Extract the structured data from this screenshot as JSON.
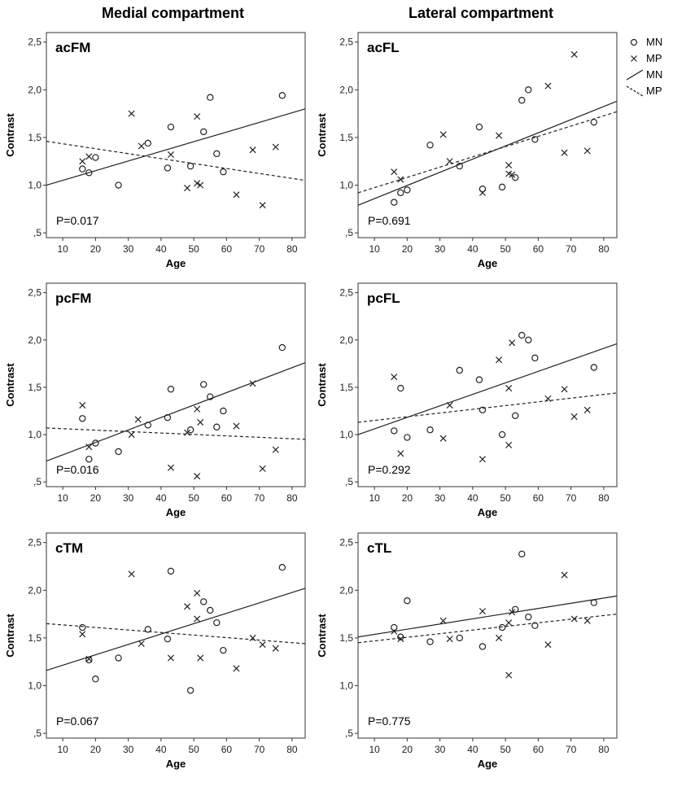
{
  "column_titles": {
    "medial": "Medial compartment",
    "lateral": "Lateral compartment"
  },
  "legend": {
    "mn_marker": "MN",
    "mp_marker": "MP",
    "mn_line": "MN",
    "mp_line": "MP"
  },
  "chart_data": [
    {
      "type": "scatter",
      "name": "acFM",
      "title": "acFM",
      "pvalue": "P=0.017",
      "xlabel": "Age",
      "ylabel": "Contrast",
      "xlim": [
        5,
        84
      ],
      "ylim": [
        0.45,
        2.6
      ],
      "xticks": [
        10,
        20,
        30,
        40,
        50,
        60,
        70,
        80
      ],
      "xtick_labels": [
        "10",
        "20",
        "30",
        "40",
        "50",
        "60",
        "70",
        "80"
      ],
      "yticks": [
        0.5,
        1.0,
        1.5,
        2.0,
        2.5
      ],
      "ytick_labels": [
        ",5",
        "1,0",
        "1,5",
        "2,0",
        "2,5"
      ],
      "series": [
        {
          "name": "MN",
          "marker": "circle",
          "x": [
            16,
            18,
            20,
            27,
            36,
            42,
            43,
            49,
            53,
            55,
            57,
            59,
            77
          ],
          "y": [
            1.17,
            1.13,
            1.29,
            1.0,
            1.44,
            1.18,
            1.61,
            1.2,
            1.56,
            1.92,
            1.33,
            1.14,
            1.94
          ]
        },
        {
          "name": "MP",
          "marker": "cross",
          "x": [
            16,
            18,
            31,
            34,
            43,
            48,
            51,
            51,
            52,
            63,
            68,
            71,
            75
          ],
          "y": [
            1.25,
            1.3,
            1.75,
            1.41,
            1.32,
            0.97,
            1.72,
            1.02,
            1.0,
            0.9,
            1.37,
            0.79,
            1.4
          ]
        }
      ],
      "fits": [
        {
          "name": "MN",
          "style": "solid",
          "x": [
            5,
            84
          ],
          "y": [
            1.0,
            1.8
          ]
        },
        {
          "name": "MP",
          "style": "dashed",
          "x": [
            5,
            84
          ],
          "y": [
            1.46,
            1.05
          ]
        }
      ]
    },
    {
      "type": "scatter",
      "name": "acFL",
      "title": "acFL",
      "pvalue": "P=0.691",
      "xlabel": "Age",
      "ylabel": "Contrast",
      "xlim": [
        5,
        84
      ],
      "ylim": [
        0.45,
        2.6
      ],
      "xticks": [
        10,
        20,
        30,
        40,
        50,
        60,
        70,
        80
      ],
      "xtick_labels": [
        "10",
        "20",
        "30",
        "40",
        "50",
        "60",
        "70",
        "80"
      ],
      "yticks": [
        0.5,
        1.0,
        1.5,
        2.0,
        2.5
      ],
      "ytick_labels": [
        ",5",
        "1,0",
        "1,5",
        "2,0",
        "2,5"
      ],
      "series": [
        {
          "name": "MN",
          "marker": "circle",
          "x": [
            16,
            18,
            20,
            27,
            36,
            42,
            43,
            49,
            53,
            55,
            57,
            59,
            77
          ],
          "y": [
            0.82,
            0.92,
            0.95,
            1.42,
            1.2,
            1.61,
            0.96,
            0.98,
            1.08,
            1.89,
            2.0,
            1.48,
            1.66
          ]
        },
        {
          "name": "MP",
          "marker": "cross",
          "x": [
            16,
            18,
            31,
            33,
            43,
            48,
            51,
            51,
            52,
            63,
            68,
            71,
            75
          ],
          "y": [
            1.14,
            1.06,
            1.53,
            1.25,
            0.92,
            1.52,
            1.21,
            1.12,
            1.11,
            2.04,
            1.34,
            2.37,
            1.36
          ]
        }
      ],
      "fits": [
        {
          "name": "MN",
          "style": "solid",
          "x": [
            5,
            84
          ],
          "y": [
            0.79,
            1.88
          ]
        },
        {
          "name": "MP",
          "style": "dashed",
          "x": [
            5,
            84
          ],
          "y": [
            0.92,
            1.77
          ]
        }
      ]
    },
    {
      "type": "scatter",
      "name": "pcFM",
      "title": "pcFM",
      "pvalue": "P=0.016",
      "xlabel": "Age",
      "ylabel": "Contrast",
      "xlim": [
        5,
        84
      ],
      "ylim": [
        0.45,
        2.6
      ],
      "xticks": [
        10,
        20,
        30,
        40,
        50,
        60,
        70,
        80
      ],
      "xtick_labels": [
        "10",
        "20",
        "30",
        "40",
        "50",
        "60",
        "70",
        "80"
      ],
      "yticks": [
        0.5,
        1.0,
        1.5,
        2.0,
        2.5
      ],
      "ytick_labels": [
        ",5",
        "1,0",
        "1,5",
        "2,0",
        "2,5"
      ],
      "series": [
        {
          "name": "MN",
          "marker": "circle",
          "x": [
            16,
            18,
            20,
            27,
            36,
            42,
            43,
            49,
            53,
            55,
            57,
            59,
            77
          ],
          "y": [
            1.17,
            0.74,
            0.91,
            0.82,
            1.1,
            1.18,
            1.48,
            1.05,
            1.53,
            1.4,
            1.08,
            1.25,
            1.92
          ]
        },
        {
          "name": "MP",
          "marker": "cross",
          "x": [
            16,
            18,
            31,
            33,
            43,
            48,
            51,
            51,
            52,
            63,
            68,
            71,
            75
          ],
          "y": [
            1.31,
            0.87,
            1.0,
            1.16,
            0.65,
            1.02,
            1.27,
            0.56,
            1.13,
            1.09,
            1.54,
            0.64,
            0.84
          ]
        }
      ],
      "fits": [
        {
          "name": "MN",
          "style": "solid",
          "x": [
            5,
            84
          ],
          "y": [
            0.72,
            1.76
          ]
        },
        {
          "name": "MP",
          "style": "dashed",
          "x": [
            5,
            84
          ],
          "y": [
            1.07,
            0.95
          ]
        }
      ]
    },
    {
      "type": "scatter",
      "name": "pcFL",
      "title": "pcFL",
      "pvalue": "P=0.292",
      "xlabel": "Age",
      "ylabel": "Contrast",
      "xlim": [
        5,
        84
      ],
      "ylim": [
        0.45,
        2.6
      ],
      "xticks": [
        10,
        20,
        30,
        40,
        50,
        60,
        70,
        80
      ],
      "xtick_labels": [
        "10",
        "20",
        "30",
        "40",
        "50",
        "60",
        "70",
        "80"
      ],
      "yticks": [
        0.5,
        1.0,
        1.5,
        2.0,
        2.5
      ],
      "ytick_labels": [
        ",5",
        "1,0",
        "1,5",
        "2,0",
        "2,5"
      ],
      "series": [
        {
          "name": "MN",
          "marker": "circle",
          "x": [
            16,
            18,
            20,
            27,
            36,
            42,
            43,
            49,
            53,
            55,
            57,
            59,
            77
          ],
          "y": [
            1.04,
            1.49,
            0.97,
            1.05,
            1.68,
            1.58,
            1.26,
            1.0,
            1.2,
            2.05,
            2.0,
            1.81,
            1.71
          ]
        },
        {
          "name": "MP",
          "marker": "cross",
          "x": [
            16,
            18,
            31,
            33,
            43,
            48,
            51,
            51,
            52,
            63,
            68,
            71,
            75
          ],
          "y": [
            1.61,
            0.8,
            0.96,
            1.31,
            0.74,
            1.79,
            1.49,
            0.89,
            1.97,
            1.38,
            1.48,
            1.19,
            1.26
          ]
        }
      ],
      "fits": [
        {
          "name": "MN",
          "style": "solid",
          "x": [
            5,
            84
          ],
          "y": [
            1.0,
            1.96
          ]
        },
        {
          "name": "MP",
          "style": "dashed",
          "x": [
            5,
            84
          ],
          "y": [
            1.13,
            1.44
          ]
        }
      ]
    },
    {
      "type": "scatter",
      "name": "cTM",
      "title": "cTM",
      "pvalue": "P=0.067",
      "xlabel": "Age",
      "ylabel": "Contrast",
      "xlim": [
        5,
        84
      ],
      "ylim": [
        0.45,
        2.6
      ],
      "xticks": [
        10,
        20,
        30,
        40,
        50,
        60,
        70,
        80
      ],
      "xtick_labels": [
        "10",
        "20",
        "30",
        "40",
        "50",
        "60",
        "70",
        "80"
      ],
      "yticks": [
        0.5,
        1.0,
        1.5,
        2.0,
        2.5
      ],
      "ytick_labels": [
        ",5",
        "1,0",
        "1,5",
        "2,0",
        "2,5"
      ],
      "series": [
        {
          "name": "MN",
          "marker": "circle",
          "x": [
            16,
            18,
            20,
            27,
            36,
            42,
            43,
            49,
            53,
            55,
            57,
            59,
            77
          ],
          "y": [
            1.61,
            1.27,
            1.07,
            1.29,
            1.59,
            1.49,
            2.2,
            0.95,
            1.88,
            1.79,
            1.66,
            1.37,
            2.24
          ]
        },
        {
          "name": "MP",
          "marker": "cross",
          "x": [
            16,
            18,
            31,
            34,
            43,
            48,
            51,
            51,
            52,
            63,
            68,
            71,
            75
          ],
          "y": [
            1.54,
            1.28,
            2.17,
            1.44,
            1.29,
            1.83,
            1.97,
            1.7,
            1.29,
            1.18,
            1.5,
            1.43,
            1.39
          ]
        }
      ],
      "fits": [
        {
          "name": "MN",
          "style": "solid",
          "x": [
            5,
            84
          ],
          "y": [
            1.16,
            2.02
          ]
        },
        {
          "name": "MP",
          "style": "dashed",
          "x": [
            5,
            84
          ],
          "y": [
            1.65,
            1.44
          ]
        }
      ]
    },
    {
      "type": "scatter",
      "name": "cTL",
      "title": "cTL",
      "pvalue": "P=0.775",
      "xlabel": "Age",
      "ylabel": "Contrast",
      "xlim": [
        5,
        84
      ],
      "ylim": [
        0.45,
        2.6
      ],
      "xticks": [
        10,
        20,
        30,
        40,
        50,
        60,
        70,
        80
      ],
      "xtick_labels": [
        "10",
        "20",
        "30",
        "40",
        "50",
        "60",
        "70",
        "80"
      ],
      "yticks": [
        0.5,
        1.0,
        1.5,
        2.0,
        2.5
      ],
      "ytick_labels": [
        ",5",
        "1,0",
        "1,5",
        "2,0",
        "2,5"
      ],
      "series": [
        {
          "name": "MN",
          "marker": "circle",
          "x": [
            16,
            18,
            20,
            27,
            36,
            43,
            49,
            53,
            55,
            57,
            59,
            77
          ],
          "y": [
            1.61,
            1.51,
            1.89,
            1.46,
            1.5,
            1.41,
            1.61,
            1.8,
            2.38,
            1.72,
            1.63,
            1.87
          ]
        },
        {
          "name": "MP",
          "marker": "cross",
          "x": [
            16,
            18,
            31,
            33,
            43,
            48,
            51,
            51,
            52,
            63,
            68,
            71,
            75
          ],
          "y": [
            1.57,
            1.49,
            1.68,
            1.49,
            1.78,
            1.5,
            1.66,
            1.11,
            1.77,
            1.43,
            2.16,
            1.7,
            1.68
          ]
        }
      ],
      "fits": [
        {
          "name": "MN",
          "style": "solid",
          "x": [
            5,
            84
          ],
          "y": [
            1.51,
            1.94
          ]
        },
        {
          "name": "MP",
          "style": "dashed",
          "x": [
            5,
            84
          ],
          "y": [
            1.45,
            1.75
          ]
        }
      ]
    }
  ]
}
